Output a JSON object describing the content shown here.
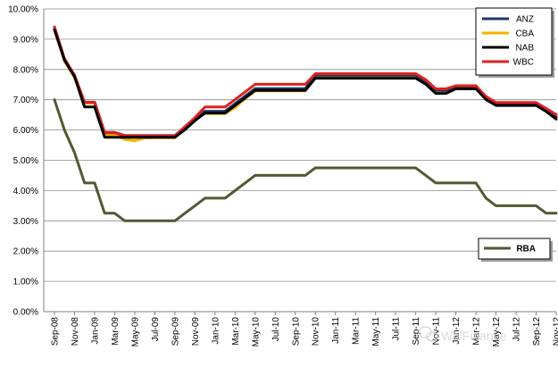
{
  "chart_data": {
    "type": "line",
    "title": "",
    "xlabel": "",
    "ylabel": "",
    "ylim": [
      0,
      10
    ],
    "y_tick_labels": [
      "0.00%",
      "1.00%",
      "2.00%",
      "3.00%",
      "4.00%",
      "5.00%",
      "6.00%",
      "7.00%",
      "8.00%",
      "9.00%",
      "10.00%"
    ],
    "x": [
      "Sep-08",
      "Oct-08",
      "Nov-08",
      "Dec-08",
      "Jan-09",
      "Feb-09",
      "Mar-09",
      "Apr-09",
      "May-09",
      "Jun-09",
      "Jul-09",
      "Aug-09",
      "Sep-09",
      "Oct-09",
      "Nov-09",
      "Dec-09",
      "Jan-10",
      "Feb-10",
      "Mar-10",
      "Apr-10",
      "May-10",
      "Jun-10",
      "Jul-10",
      "Aug-10",
      "Sep-10",
      "Oct-10",
      "Nov-10",
      "Dec-10",
      "Jan-11",
      "Feb-11",
      "Mar-11",
      "Apr-11",
      "May-11",
      "Jun-11",
      "Jul-11",
      "Aug-11",
      "Sep-11",
      "Oct-11",
      "Nov-11",
      "Dec-11",
      "Jan-12",
      "Feb-12",
      "Mar-12",
      "Apr-12",
      "May-12",
      "Jun-12",
      "Jul-12",
      "Aug-12",
      "Sep-12",
      "Oct-12",
      "Nov-12"
    ],
    "x_tick_labels": [
      "Sep-08",
      "Nov-08",
      "Jan-09",
      "Mar-09",
      "May-09",
      "Jul-09",
      "Sep-09",
      "Nov-09",
      "Jan-10",
      "Mar-10",
      "May-10",
      "Jul-10",
      "Sep-10",
      "Nov-10",
      "Jan-11",
      "Mar-11",
      "May-11",
      "Jul-11",
      "Sep-11",
      "Nov-11",
      "Jan-12",
      "Mar-12",
      "May-12",
      "Jul-12",
      "Sep-12",
      "Nov-12"
    ],
    "grid": "horizontal",
    "series": [
      {
        "name": "ANZ",
        "color": "#1f3864",
        "values": [
          9.37,
          8.32,
          7.77,
          6.92,
          6.92,
          5.92,
          5.92,
          5.82,
          5.82,
          5.82,
          5.82,
          5.82,
          5.82,
          6.07,
          6.37,
          6.62,
          6.62,
          6.62,
          6.87,
          7.12,
          7.37,
          7.37,
          7.37,
          7.37,
          7.37,
          7.37,
          7.81,
          7.81,
          7.81,
          7.81,
          7.81,
          7.81,
          7.81,
          7.81,
          7.81,
          7.81,
          7.81,
          7.61,
          7.31,
          7.31,
          7.41,
          7.41,
          7.41,
          7.06,
          6.86,
          6.86,
          6.86,
          6.86,
          6.86,
          6.66,
          6.43
        ]
      },
      {
        "name": "CBA",
        "color": "#f4b400",
        "values": [
          9.35,
          8.3,
          7.75,
          6.9,
          6.9,
          5.85,
          5.85,
          5.7,
          5.65,
          5.75,
          5.75,
          5.75,
          5.75,
          6.05,
          6.35,
          6.55,
          6.55,
          6.55,
          6.75,
          7.05,
          7.3,
          7.3,
          7.3,
          7.3,
          7.3,
          7.3,
          7.81,
          7.81,
          7.81,
          7.81,
          7.81,
          7.81,
          7.81,
          7.81,
          7.81,
          7.81,
          7.81,
          7.61,
          7.31,
          7.31,
          7.46,
          7.46,
          7.46,
          7.06,
          6.86,
          6.86,
          6.86,
          6.86,
          6.86,
          6.66,
          6.43
        ]
      },
      {
        "name": "NAB",
        "color": "#000000",
        "values": [
          9.31,
          8.31,
          7.76,
          6.76,
          6.76,
          5.76,
          5.76,
          5.76,
          5.76,
          5.76,
          5.76,
          5.76,
          5.76,
          6.01,
          6.31,
          6.56,
          6.56,
          6.56,
          6.81,
          7.06,
          7.31,
          7.31,
          7.31,
          7.31,
          7.31,
          7.31,
          7.71,
          7.71,
          7.71,
          7.71,
          7.71,
          7.71,
          7.71,
          7.71,
          7.71,
          7.71,
          7.71,
          7.51,
          7.21,
          7.21,
          7.36,
          7.36,
          7.36,
          7.01,
          6.81,
          6.81,
          6.81,
          6.81,
          6.81,
          6.61,
          6.36
        ]
      },
      {
        "name": "WBC",
        "color": "#e02020",
        "values": [
          9.41,
          8.36,
          7.81,
          6.91,
          6.91,
          5.91,
          5.91,
          5.81,
          5.81,
          5.81,
          5.81,
          5.81,
          5.81,
          6.11,
          6.41,
          6.76,
          6.76,
          6.76,
          7.01,
          7.26,
          7.51,
          7.51,
          7.51,
          7.51,
          7.51,
          7.51,
          7.86,
          7.86,
          7.86,
          7.86,
          7.86,
          7.86,
          7.86,
          7.86,
          7.86,
          7.86,
          7.86,
          7.66,
          7.36,
          7.36,
          7.46,
          7.46,
          7.46,
          7.11,
          6.91,
          6.91,
          6.91,
          6.91,
          6.91,
          6.71,
          6.51
        ]
      },
      {
        "name": "RBA",
        "color": "#4e5b31",
        "values": [
          7.0,
          6.0,
          5.25,
          4.25,
          4.25,
          3.25,
          3.25,
          3.0,
          3.0,
          3.0,
          3.0,
          3.0,
          3.0,
          3.25,
          3.5,
          3.75,
          3.75,
          3.75,
          4.0,
          4.25,
          4.5,
          4.5,
          4.5,
          4.5,
          4.5,
          4.5,
          4.75,
          4.75,
          4.75,
          4.75,
          4.75,
          4.75,
          4.75,
          4.75,
          4.75,
          4.75,
          4.75,
          4.5,
          4.25,
          4.25,
          4.25,
          4.25,
          4.25,
          3.75,
          3.5,
          3.5,
          3.5,
          3.5,
          3.5,
          3.25,
          3.25
        ]
      }
    ],
    "legends": [
      {
        "position": "top-right",
        "entries": [
          "ANZ",
          "CBA",
          "NAB",
          "WBC"
        ]
      },
      {
        "position": "right",
        "entries": [
          "RBA"
        ]
      }
    ]
  },
  "watermark": {
    "text": "WalFinance",
    "icon": "wechat-icon"
  }
}
